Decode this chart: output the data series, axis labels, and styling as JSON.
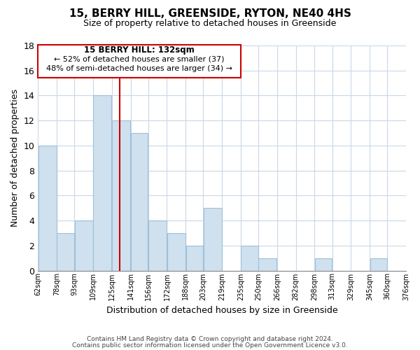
{
  "title": "15, BERRY HILL, GREENSIDE, RYTON, NE40 4HS",
  "subtitle": "Size of property relative to detached houses in Greenside",
  "xlabel": "Distribution of detached houses by size in Greenside",
  "ylabel": "Number of detached properties",
  "bar_color": "#cfe0ef",
  "bar_edgecolor": "#a0c0d8",
  "reference_line_x": 132,
  "reference_line_color": "#cc0000",
  "annotation_title": "15 BERRY HILL: 132sqm",
  "annotation_line1": "← 52% of detached houses are smaller (37)",
  "annotation_line2": "48% of semi-detached houses are larger (34) →",
  "bins": [
    62,
    78,
    93,
    109,
    125,
    141,
    156,
    172,
    188,
    203,
    219,
    235,
    250,
    266,
    282,
    298,
    313,
    329,
    345,
    360,
    376
  ],
  "counts": [
    10,
    3,
    4,
    14,
    12,
    11,
    4,
    3,
    2,
    5,
    0,
    2,
    1,
    0,
    0,
    1,
    0,
    0,
    1,
    0
  ],
  "ylim": [
    0,
    18
  ],
  "yticks": [
    0,
    2,
    4,
    6,
    8,
    10,
    12,
    14,
    16,
    18
  ],
  "footer1": "Contains HM Land Registry data © Crown copyright and database right 2024.",
  "footer2": "Contains public sector information licensed under the Open Government Licence v3.0."
}
